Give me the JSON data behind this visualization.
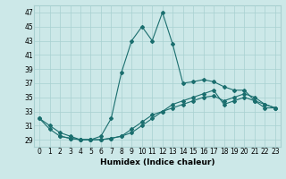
{
  "xlabel": "Humidex (Indice chaleur)",
  "background_color": "#cce8e8",
  "grid_color": "#a8d0d0",
  "line_color": "#1a6e6e",
  "xlim": [
    -0.5,
    23.5
  ],
  "ylim": [
    28,
    48
  ],
  "yticks": [
    29,
    31,
    33,
    35,
    37,
    39,
    41,
    43,
    45,
    47
  ],
  "xticks": [
    0,
    1,
    2,
    3,
    4,
    5,
    6,
    7,
    8,
    9,
    10,
    11,
    12,
    13,
    14,
    15,
    16,
    17,
    18,
    19,
    20,
    21,
    22,
    23
  ],
  "line1_x": [
    0,
    1,
    2,
    3,
    4,
    5,
    6,
    7,
    8,
    9,
    10,
    11,
    12,
    13,
    14,
    15,
    16,
    17,
    18,
    19,
    20,
    21,
    22,
    23
  ],
  "line1_y": [
    32,
    31,
    30,
    29.5,
    29,
    29,
    29.5,
    32,
    38.5,
    43,
    45,
    43,
    47,
    42.5,
    37,
    37.2,
    37.5,
    37.2,
    36.5,
    36,
    36,
    34.5,
    34,
    33.5
  ],
  "line2_x": [
    0,
    1,
    2,
    3,
    4,
    5,
    6,
    7,
    8,
    9,
    10,
    11,
    12,
    13,
    14,
    15,
    16,
    17,
    18,
    19,
    20,
    21,
    22,
    23
  ],
  "line2_y": [
    32,
    30.5,
    29.5,
    29.2,
    29,
    29,
    29,
    29.2,
    29.5,
    30.5,
    31.5,
    32.5,
    33,
    33.5,
    34,
    34.5,
    35,
    35.2,
    34.5,
    35,
    35.5,
    35,
    34,
    33.5
  ],
  "line3_x": [
    2,
    3,
    4,
    5,
    6,
    7,
    8,
    9,
    10,
    11,
    12,
    13,
    14,
    15,
    16,
    17,
    18,
    19,
    20,
    21,
    22,
    23
  ],
  "line3_y": [
    29.5,
    29.2,
    29,
    29,
    29,
    29.2,
    29.5,
    30,
    31,
    32,
    33,
    34,
    34.5,
    35,
    35.5,
    36,
    34,
    34.5,
    35,
    34.5,
    33.5,
    33.5
  ],
  "marker_size": 2,
  "linewidth": 0.8,
  "xlabel_fontsize": 6.5,
  "tick_fontsize": 5.5
}
